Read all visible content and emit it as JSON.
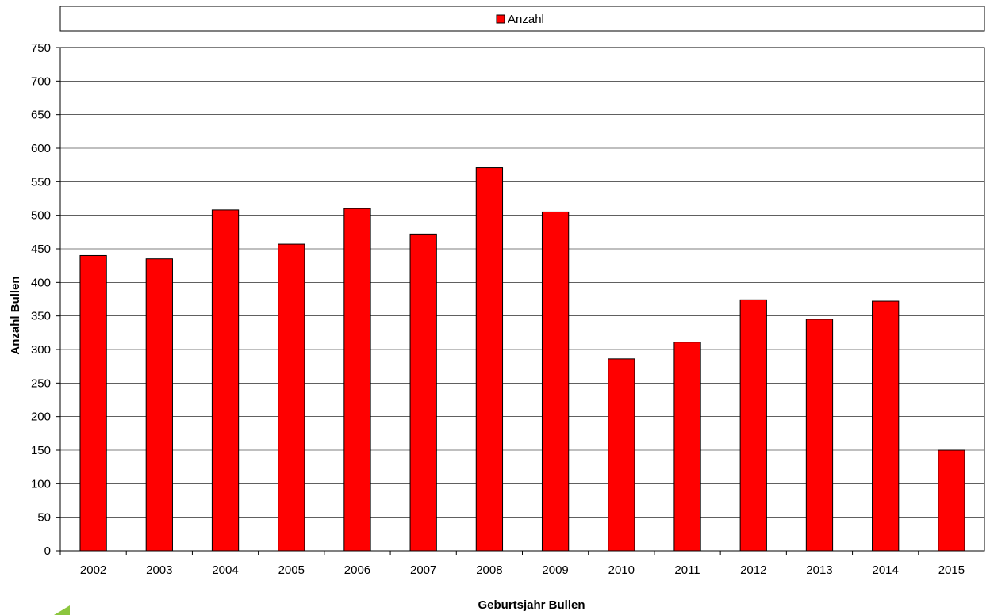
{
  "chart_data": {
    "type": "bar",
    "categories": [
      "2002",
      "2003",
      "2004",
      "2005",
      "2006",
      "2007",
      "2008",
      "2009",
      "2010",
      "2011",
      "2012",
      "2013",
      "2014",
      "2015"
    ],
    "series": [
      {
        "name": "Anzahl",
        "values": [
          440,
          435,
          508,
          457,
          510,
          472,
          571,
          505,
          286,
          311,
          374,
          345,
          372,
          150
        ],
        "color": "#ff0000"
      }
    ],
    "title": "",
    "xlabel": "Geburtsjahr Bullen",
    "ylabel": "Anzahl Bullen",
    "ylim": [
      0,
      750
    ],
    "yticks": [
      "0",
      "50",
      "100",
      "150",
      "200",
      "250",
      "300",
      "350",
      "400",
      "450",
      "500",
      "550",
      "600",
      "650",
      "700",
      "750"
    ],
    "grid": true,
    "legend_position": "top",
    "colors": {
      "bar_fill": "#ff0000",
      "bar_stroke": "#000000",
      "gridline": "#000000",
      "decor_arrow": "#8cc63f"
    }
  }
}
